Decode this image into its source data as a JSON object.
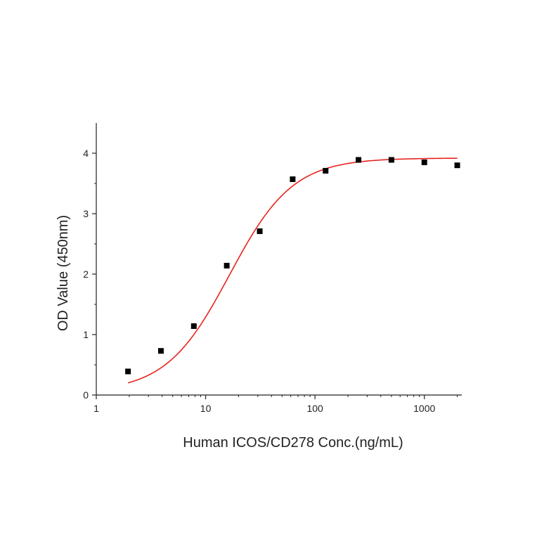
{
  "chart_data": {
    "type": "scatter",
    "title": "",
    "xlabel": "Human ICOS/CD278 Conc.(ng/mL)",
    "ylabel": "OD Value (450nm)",
    "x_scale": "log",
    "xlim": [
      1,
      2200
    ],
    "ylim": [
      0,
      4.5
    ],
    "x_ticks": [
      1,
      10,
      100,
      1000
    ],
    "x_tick_labels": [
      "1",
      "10",
      "100",
      "1000"
    ],
    "y_ticks": [
      0,
      1,
      2,
      3,
      4
    ],
    "y_tick_labels": [
      "0",
      "1",
      "2",
      "3",
      "4"
    ],
    "grid": false,
    "legend": "none",
    "series": [
      {
        "type": "scatter",
        "marker": "square",
        "color": "#000000",
        "x": [
          1.95,
          3.9,
          7.8,
          15.6,
          31.25,
          62.5,
          125,
          250,
          500,
          1000,
          2000
        ],
        "y": [
          0.39,
          0.73,
          1.14,
          2.14,
          2.71,
          3.57,
          3.71,
          3.89,
          3.89,
          3.85,
          3.8
        ]
      },
      {
        "type": "line",
        "color": "#e8231f",
        "fit": "4PL",
        "bottom": 0.05,
        "top": 3.92,
        "ec50": 16.5,
        "hill": 1.5,
        "x_range": [
          1.95,
          2000
        ]
      }
    ]
  }
}
